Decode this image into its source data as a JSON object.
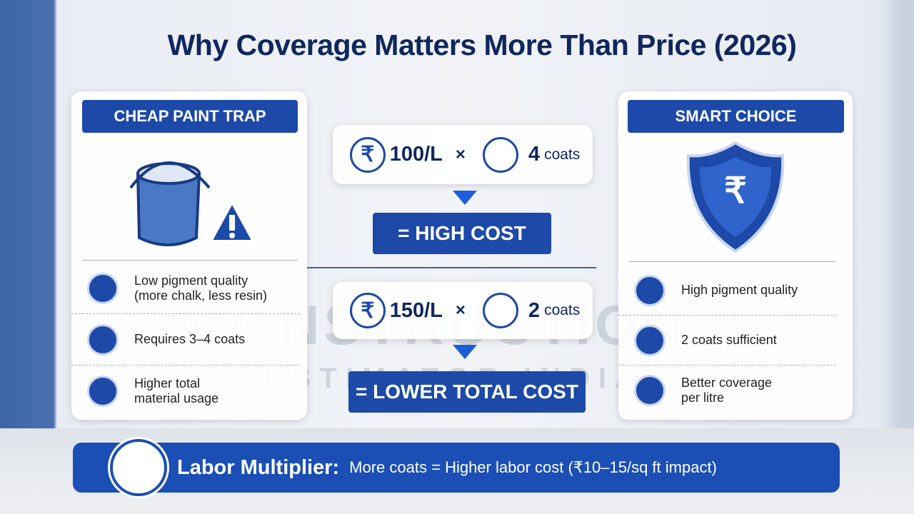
{
  "header": {
    "title": "Why Coverage Matters More Than Price (2026)"
  },
  "watermark": {
    "line1": "CONSTRUCTION",
    "line2": "ESTIMATOR INDIA"
  },
  "left_card": {
    "heading": "CHEAP PAINT TRAP",
    "items": [
      "Low pigment quality (more chalk, less resin)",
      "Requires 3–4 coats",
      "Higher total material usage"
    ]
  },
  "right_card": {
    "heading": "SMART CHOICE",
    "items": [
      "High pigment quality",
      "2 coats sufficient",
      "Better coverage per litre"
    ]
  },
  "currency": "₹",
  "comparisons": [
    {
      "price": "100/L",
      "times": "×",
      "coats": "4",
      "coats_unit": "coats",
      "result": "= HIGH COST"
    },
    {
      "price": "150/L",
      "times": "×",
      "coats": "2",
      "coats_unit": "coats",
      "result": "= LOWER TOTAL COST"
    }
  ],
  "footer": {
    "label": "Labor Multiplier:",
    "text": "More coats = Higher labor cost (₹10–15/sq ft impact)"
  }
}
